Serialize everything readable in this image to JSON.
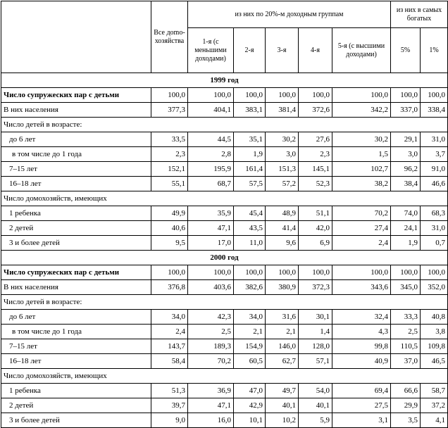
{
  "header": {
    "all": "Все до­mо­хо­зяйства",
    "groups": "из них по 20%-м доходным группам",
    "rich": "из них в самых богатых",
    "columns": [
      "1-я (с меньшими доходами)",
      "2-я",
      "3-я",
      "4-я",
      "5-я (с высшими доходами)",
      "5%",
      "1%"
    ]
  },
  "sections": [
    {
      "title": "1999 год",
      "rows": [
        {
          "label": "Число супружеских пар с детьми",
          "cells": [
            "100,0",
            "100,0",
            "100,0",
            "100,0",
            "100,0",
            "100,0",
            "100,0",
            "100,0"
          ]
        },
        {
          "label": "В них населения",
          "cells": [
            "377,3",
            "404,1",
            "383,1",
            "381,4",
            "372,6",
            "342,2",
            "337,0",
            "338,4"
          ]
        },
        {
          "label": "Число детей в возрасте:",
          "cells": []
        },
        {
          "label": "до 6 лет",
          "cells": [
            "33,5",
            "44,5",
            "35,1",
            "30,2",
            "27,6",
            "30,2",
            "29,1",
            "31,0"
          ]
        },
        {
          "label": "в том числе до 1 года",
          "cells": [
            "2,3",
            "2,8",
            "1,9",
            "3,0",
            "2,3",
            "1,5",
            "3,0",
            "3,7"
          ]
        },
        {
          "label": "7–15 лет",
          "cells": [
            "152,1",
            "195,9",
            "161,4",
            "151,3",
            "145,1",
            "102,7",
            "96,2",
            "91,0"
          ]
        },
        {
          "label": "16–18 лет",
          "cells": [
            "55,1",
            "68,7",
            "57,5",
            "57,2",
            "52,3",
            "38,2",
            "38,4",
            "46,6"
          ]
        },
        {
          "label": "Число домохозяйств, имеющих",
          "cells": []
        },
        {
          "label": "1 ребенка",
          "cells": [
            "49,9",
            "35,9",
            "45,4",
            "48,9",
            "51,1",
            "70,2",
            "74,0",
            "68,3"
          ]
        },
        {
          "label": "2 детей",
          "cells": [
            "40,6",
            "47,1",
            "43,5",
            "41,4",
            "42,0",
            "27,4",
            "24,1",
            "31,0"
          ]
        },
        {
          "label": "3 и более детей",
          "cells": [
            "9,5",
            "17,0",
            "11,0",
            "9,6",
            "6,9",
            "2,4",
            "1,9",
            "0,7"
          ]
        }
      ]
    },
    {
      "title": "2000 год",
      "rows": [
        {
          "label": "Число супружеских пар с детьми",
          "cells": [
            "100,0",
            "100,0",
            "100,0",
            "100,0",
            "100,0",
            "100,0",
            "100,0",
            "100,0"
          ]
        },
        {
          "label": "В них населения",
          "cells": [
            "376,8",
            "403,6",
            "382,6",
            "380,9",
            "372,3",
            "343,6",
            "345,0",
            "352,0"
          ]
        },
        {
          "label": "Число детей в возрасте:",
          "cells": []
        },
        {
          "label": "до 6 лет",
          "cells": [
            "34,0",
            "42,3",
            "34,0",
            "31,6",
            "30,1",
            "32,4",
            "33,3",
            "40,8"
          ]
        },
        {
          "label": "в том числе до 1 года",
          "cells": [
            "2,4",
            "2,5",
            "2,1",
            "2,1",
            "1,4",
            "4,3",
            "2,5",
            "3,8"
          ]
        },
        {
          "label": "7–15 лет",
          "cells": [
            "143,7",
            "189,3",
            "154,9",
            "146,0",
            "128,0",
            "99,8",
            "110,5",
            "109,8"
          ]
        },
        {
          "label": "16–18 лет",
          "cells": [
            "58,4",
            "70,2",
            "60,5",
            "62,7",
            "57,1",
            "40,9",
            "37,0",
            "46,5"
          ]
        },
        {
          "label": "Число домохозяйств, имеющих",
          "cells": []
        },
        {
          "label": "1 ребенка",
          "cells": [
            "51,3",
            "36,9",
            "47,0",
            "49,7",
            "54,0",
            "69,4",
            "66,6",
            "58,7"
          ]
        },
        {
          "label": "2 детей",
          "cells": [
            "39,7",
            "47,1",
            "42,9",
            "40,1",
            "40,1",
            "27,5",
            "29,9",
            "37,2"
          ]
        },
        {
          "label": "3 и более детей",
          "cells": [
            "9,0",
            "16,0",
            "10,1",
            "10,2",
            "5,9",
            "3,1",
            "3,5",
            "4,1"
          ]
        }
      ]
    }
  ]
}
